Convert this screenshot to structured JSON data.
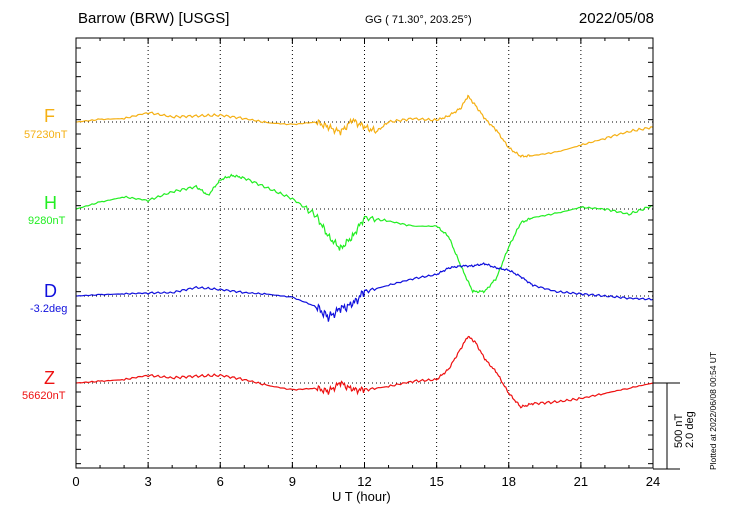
{
  "header": {
    "station": "Barrow (BRW)  [USGS]",
    "coords": "GG ( 71.30°, 203.25°)",
    "date": "2022/05/08"
  },
  "xlabel": "U T (hour)",
  "scale_label": "500 nT\n2.0 deg",
  "plotted": "Plotted at 2022/06/08 00:54 UT",
  "colors": {
    "F": "#f5b014",
    "H": "#22ee22",
    "D": "#1010dd",
    "Z": "#ee1111"
  },
  "channels": [
    {
      "id": "F",
      "letter": "F",
      "base": "57230nT"
    },
    {
      "id": "H",
      "letter": "H",
      "base": "9280nT"
    },
    {
      "id": "D",
      "letter": "D",
      "base": "-3.2deg"
    },
    {
      "id": "Z",
      "letter": "Z",
      "base": "56620nT"
    }
  ],
  "chart_data": {
    "type": "line",
    "x_ticks": [
      "0",
      "3",
      "6",
      "9",
      "12",
      "15",
      "18",
      "21",
      "24"
    ],
    "xlim": [
      0,
      24
    ],
    "scale": "500 nT / 2.0 deg per scale bar",
    "grid": true,
    "series": [
      {
        "name": "F",
        "unit": "nT",
        "baseline": 57230,
        "x": [
          0,
          1,
          2,
          3,
          4,
          5,
          6,
          7,
          8,
          9,
          10,
          10.5,
          11,
          11.5,
          12,
          12.5,
          13,
          14,
          15,
          15.5,
          16,
          16.3,
          16.6,
          17,
          17.5,
          18,
          18.5,
          19,
          20,
          21,
          22,
          23,
          24
        ],
        "y": [
          57230,
          57245,
          57250,
          57285,
          57260,
          57265,
          57270,
          57250,
          57225,
          57215,
          57230,
          57200,
          57170,
          57240,
          57200,
          57175,
          57230,
          57250,
          57240,
          57265,
          57310,
          57380,
          57330,
          57250,
          57180,
          57080,
          57030,
          57035,
          57055,
          57095,
          57135,
          57175,
          57200
        ]
      },
      {
        "name": "H",
        "unit": "nT",
        "baseline": 9280,
        "x": [
          0,
          1,
          2,
          3,
          4,
          5,
          5.5,
          6,
          6.5,
          7,
          8,
          9,
          10,
          10.5,
          11,
          11.5,
          12,
          13,
          14,
          15,
          15.5,
          16,
          16.5,
          17,
          17.5,
          18,
          18.5,
          19,
          20,
          21,
          22,
          23,
          24
        ],
        "y": [
          9280,
          9320,
          9350,
          9330,
          9380,
          9410,
          9360,
          9450,
          9475,
          9460,
          9400,
          9340,
          9240,
          9120,
          9050,
          9120,
          9230,
          9210,
          9180,
          9180,
          9120,
          8950,
          8800,
          8800,
          8880,
          9060,
          9200,
          9230,
          9255,
          9290,
          9280,
          9250,
          9300
        ]
      },
      {
        "name": "D",
        "unit": "deg",
        "baseline": -3.2,
        "x": [
          0,
          1,
          2,
          3,
          4,
          5,
          6,
          7,
          8,
          9,
          10,
          10.5,
          11,
          11.5,
          12,
          13,
          14,
          15,
          15.5,
          16,
          16.5,
          17,
          17.5,
          18,
          18.5,
          19,
          20,
          21,
          22,
          23,
          24
        ],
        "y": [
          -3.2,
          -3.17,
          -3.15,
          -3.13,
          -3.12,
          -3.0,
          -3.05,
          -3.12,
          -3.16,
          -3.23,
          -3.45,
          -3.7,
          -3.5,
          -3.4,
          -3.1,
          -2.95,
          -2.8,
          -2.7,
          -2.55,
          -2.5,
          -2.5,
          -2.45,
          -2.55,
          -2.6,
          -2.75,
          -2.95,
          -3.1,
          -3.15,
          -3.2,
          -3.25,
          -3.28
        ]
      },
      {
        "name": "Z",
        "unit": "nT",
        "baseline": 56620,
        "x": [
          0,
          1,
          2,
          3,
          4,
          5,
          6,
          7,
          8,
          9,
          10,
          10.5,
          11,
          11.5,
          12,
          13,
          14,
          15,
          15.5,
          16,
          16.3,
          16.6,
          17,
          17.5,
          18,
          18.5,
          19,
          20,
          21,
          22,
          23,
          24
        ],
        "y": [
          56620,
          56630,
          56640,
          56665,
          56650,
          56660,
          56665,
          56640,
          56605,
          56580,
          56590,
          56570,
          56620,
          56580,
          56580,
          56600,
          56630,
          56640,
          56700,
          56820,
          56890,
          56860,
          56760,
          56680,
          56560,
          56480,
          56500,
          56510,
          56530,
          56560,
          56590,
          56620
        ]
      }
    ]
  }
}
